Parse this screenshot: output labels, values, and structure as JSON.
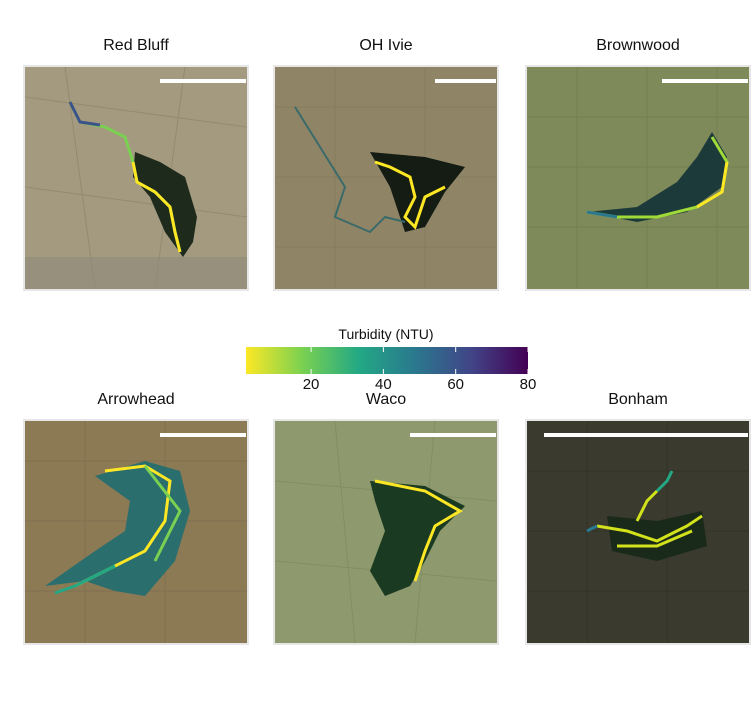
{
  "legend": {
    "title": "Turbidity (NTU)",
    "min": 2,
    "max": 80,
    "ticks": [
      "20",
      "40",
      "60",
      "80"
    ],
    "tick_values": [
      20,
      40,
      60,
      80
    ],
    "colormap": "viridis (reversed: yellow = low, purple = high)"
  },
  "panels": [
    {
      "title": "Red Bluff"
    },
    {
      "title": "OH Ivie"
    },
    {
      "title": "Brownwood"
    },
    {
      "title": "Arrowhead"
    },
    {
      "title": "Waco"
    },
    {
      "title": "Bonham"
    }
  ],
  "colors": {
    "scale_bar": "#ffffff",
    "map_border": "#e6e6e6",
    "low_turbidity": "#fde725",
    "high_turbidity": "#440154"
  }
}
